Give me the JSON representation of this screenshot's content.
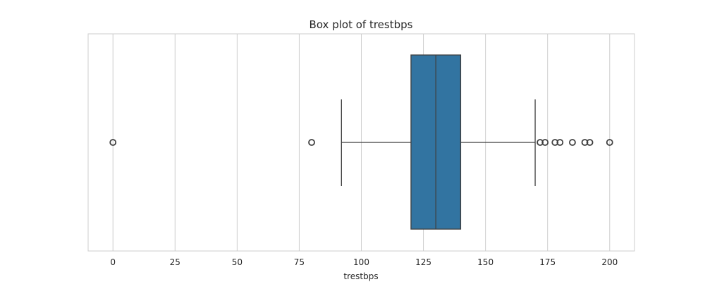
{
  "chart_data": {
    "type": "box",
    "title": "Box plot of trestbps",
    "xlabel": "trestbps",
    "ylabel": "",
    "orientation": "horizontal",
    "xlim": [
      -10,
      210
    ],
    "xticks": [
      0,
      25,
      50,
      75,
      100,
      125,
      150,
      175,
      200
    ],
    "grid": true,
    "box": {
      "color": "#3274a1",
      "whisker_low": 92,
      "q1": 120,
      "median": 130,
      "q3": 140,
      "whisker_high": 170
    },
    "outliers": [
      0,
      80,
      172,
      174,
      178,
      180,
      185,
      190,
      192,
      200
    ]
  }
}
